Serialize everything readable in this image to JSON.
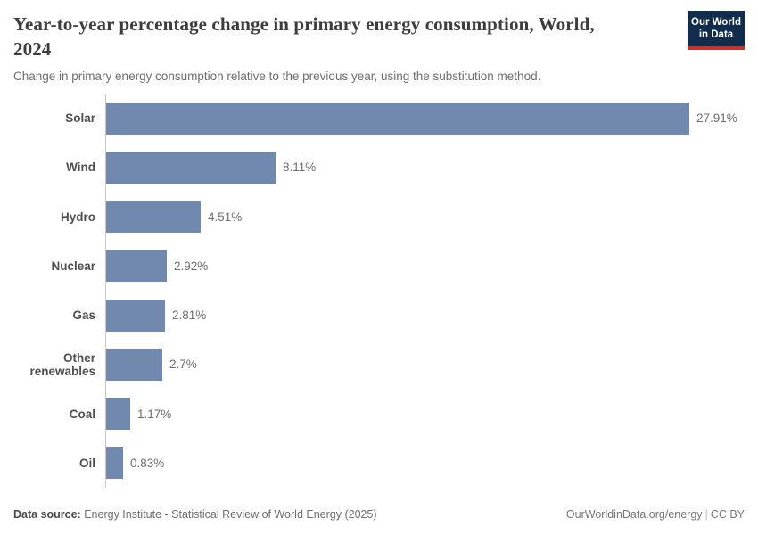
{
  "header": {
    "title": "Year-to-year percentage change in primary energy consumption, World, 2024",
    "subtitle": "Change in primary energy consumption relative to the previous year, using the substitution method.",
    "logo": {
      "line1": "Our World",
      "line2": "in Data"
    }
  },
  "chart_data": {
    "type": "bar",
    "orientation": "horizontal",
    "title": "Year-to-year percentage change in primary energy consumption, World, 2024",
    "subtitle": "Change in primary energy consumption relative to the previous year, using the substitution method.",
    "categories": [
      "Solar",
      "Wind",
      "Hydro",
      "Nuclear",
      "Gas",
      "Other renewables",
      "Coal",
      "Oil"
    ],
    "values": [
      27.91,
      8.11,
      4.51,
      2.92,
      2.81,
      2.7,
      1.17,
      0.83
    ],
    "value_labels": [
      "27.91%",
      "8.11%",
      "4.51%",
      "2.92%",
      "2.81%",
      "2.7%",
      "1.17%",
      "0.83%"
    ],
    "unit": "%",
    "xlim": [
      0,
      27.91
    ],
    "grid": false,
    "legend": false,
    "bar_color": "#7189ae",
    "axis_color": "#c8c8c8"
  },
  "footer": {
    "datasource_label": "Data source:",
    "datasource_value": " Energy Institute - Statistical Review of World Energy (2025)",
    "link": "OurWorldinData.org/energy",
    "separator": "|",
    "license": "CC BY"
  },
  "colors": {
    "bar": "#7189ae",
    "title": "#3d3d3d",
    "subtitle": "#6e6e6e",
    "logo_bg": "#122c4e",
    "logo_accent": "#c5332d"
  }
}
